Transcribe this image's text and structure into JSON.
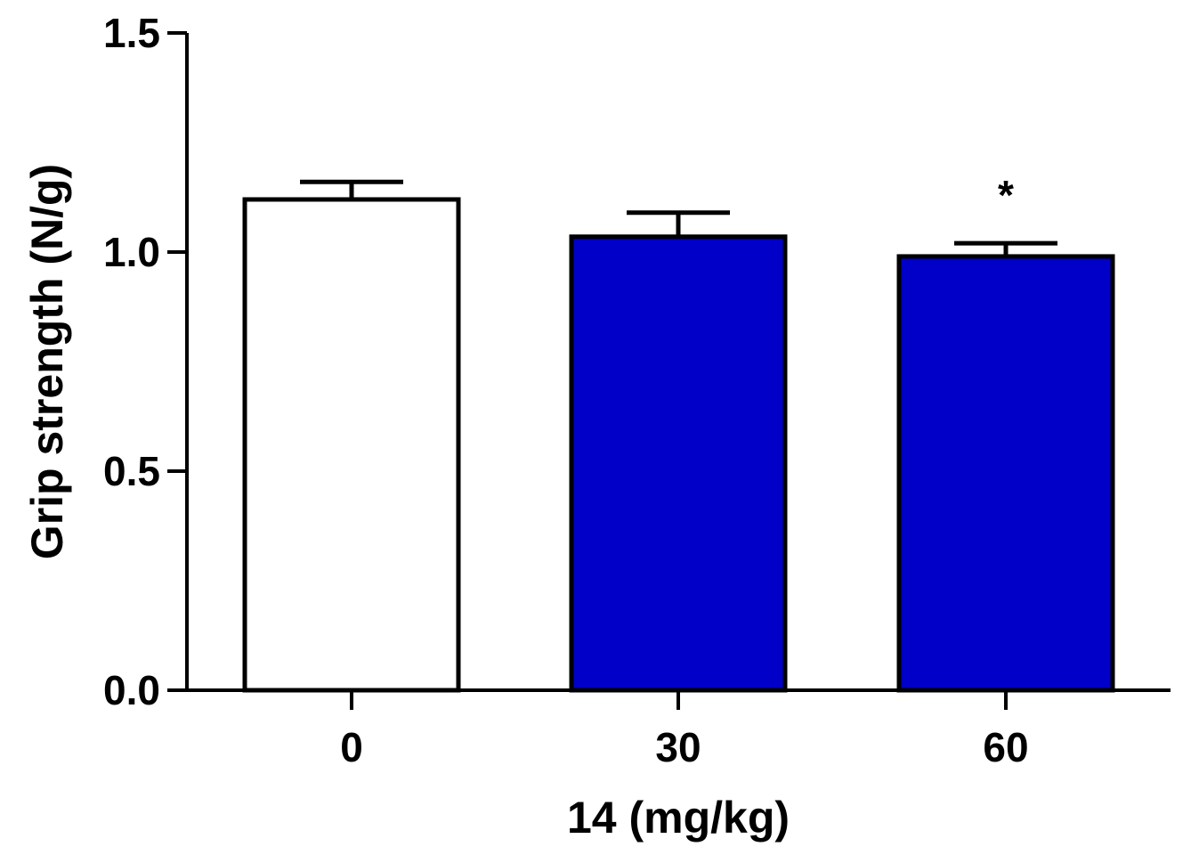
{
  "chart_data": {
    "type": "bar",
    "categories": [
      "0",
      "30",
      "60"
    ],
    "values": [
      1.12,
      1.035,
      0.99
    ],
    "errors": [
      0.04,
      0.055,
      0.03
    ],
    "bar_colors": [
      "#ffffff",
      "#0000c8",
      "#0000c8"
    ],
    "edge_color": "#000000",
    "annotations": [
      {
        "category": "60",
        "text": "*"
      }
    ],
    "xlabel": "14 (mg/kg)",
    "ylabel": "Grip strength (N/g)",
    "ylim": [
      0,
      1.5
    ],
    "yticks": [
      0,
      0.5,
      1.0,
      1.5
    ],
    "ytick_labels": [
      "0.0",
      "0.5",
      "1.0",
      "1.5"
    ],
    "grid": false
  }
}
